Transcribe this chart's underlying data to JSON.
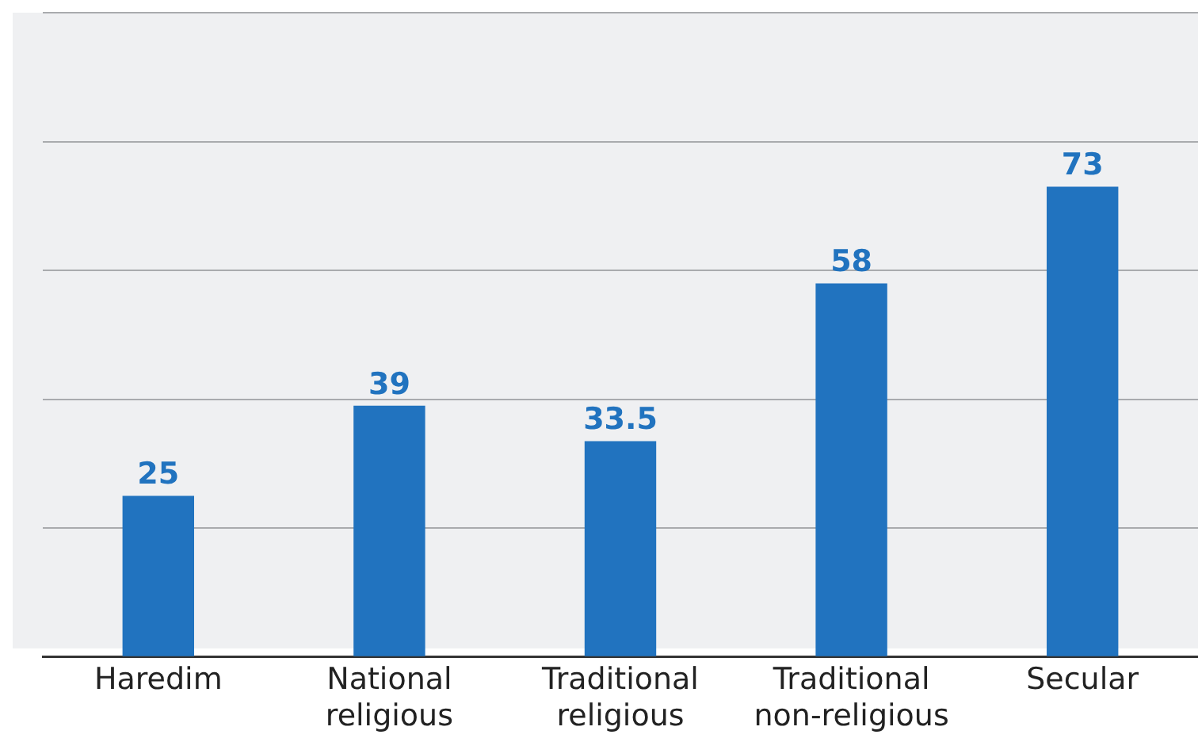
{
  "chart_data": {
    "type": "bar",
    "categories": [
      "Haredim",
      "National religious",
      "Traditional religious",
      "Traditional non-religious",
      "Secular"
    ],
    "values": [
      25,
      39,
      33.5,
      58,
      73
    ],
    "color": "#2173bf",
    "data_labels": true,
    "ylim": [
      0,
      100
    ],
    "yticks": [
      {
        "value": 0,
        "label": null
      },
      {
        "value": 20,
        "label": null
      },
      {
        "value": 40,
        "label": null
      },
      {
        "value": 60,
        "label": null
      },
      {
        "value": 80,
        "label": null
      },
      {
        "value": 100,
        "label": null
      }
    ],
    "tick_labels": "x",
    "grid": "y"
  }
}
